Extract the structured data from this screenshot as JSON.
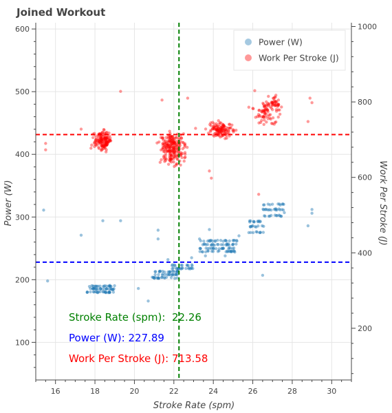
{
  "chart_data": {
    "type": "scatter",
    "title": "Joined Workout",
    "xlabel": "Stroke Rate (spm)",
    "ylabel": "Power (W)",
    "ylabel_right": "Work Per Stroke (J)",
    "xlim": [
      15.0,
      31.0
    ],
    "ylim": [
      40,
      610
    ],
    "ylim_right": [
      63,
      1010
    ],
    "x_ticks": [
      "16",
      "18",
      "20",
      "22",
      "24",
      "26",
      "28",
      "30"
    ],
    "y_ticks": [
      "100",
      "200",
      "300",
      "400",
      "500",
      "600"
    ],
    "y_ticks_right": [
      "200",
      "400",
      "600",
      "800",
      "1000"
    ],
    "grid": true,
    "legend_position": "top-right",
    "legend": [
      {
        "label": "Power (W)",
        "color": "#1f77b4"
      },
      {
        "label": "Work Per Stroke (J)",
        "color": "#ff0000"
      }
    ],
    "reference_lines": {
      "stroke_rate_spm": 22.26,
      "power_w": 227.89,
      "work_per_stroke_j": 713.58
    },
    "annotations": [
      {
        "text": "Stroke Rate (spm):  22.26",
        "color": "#008000"
      },
      {
        "text": "Power (W): 227.89",
        "color": "#0000ff"
      },
      {
        "text": "Work Per Stroke (J): 713.58",
        "color": "#ff0000"
      }
    ],
    "series": [
      {
        "name": "Power (W)",
        "axis": "left",
        "color": "#1f77b4",
        "clusters": [
          {
            "x_range": [
              17.6,
              19.0
            ],
            "y_values": [
              180,
              185,
              190
            ],
            "count": 70
          },
          {
            "x_range": [
              20.9,
              22.2
            ],
            "y_values": [
              203,
              208,
              213
            ],
            "count": 55
          },
          {
            "x_range": [
              21.9,
              23.0
            ],
            "y_values": [
              218,
              223
            ],
            "count": 30
          },
          {
            "x_range": [
              23.3,
              25.2
            ],
            "y_values": [
              245,
              250,
              256,
              262
            ],
            "count": 90
          },
          {
            "x_range": [
              25.8,
              26.6
            ],
            "y_values": [
              276,
              285,
              293
            ],
            "count": 30
          },
          {
            "x_range": [
              26.5,
              27.6
            ],
            "y_values": [
              302,
              312,
              320
            ],
            "count": 40
          }
        ],
        "points": [
          {
            "x": 15.4,
            "y": 311
          },
          {
            "x": 15.6,
            "y": 198
          },
          {
            "x": 17.3,
            "y": 271
          },
          {
            "x": 18.4,
            "y": 294
          },
          {
            "x": 19.3,
            "y": 294
          },
          {
            "x": 20.2,
            "y": 186
          },
          {
            "x": 20.7,
            "y": 166
          },
          {
            "x": 21.2,
            "y": 279
          },
          {
            "x": 21.2,
            "y": 265
          },
          {
            "x": 21.7,
            "y": 232
          },
          {
            "x": 22.9,
            "y": 235
          },
          {
            "x": 23.3,
            "y": 265
          },
          {
            "x": 23.6,
            "y": 238
          },
          {
            "x": 23.8,
            "y": 280
          },
          {
            "x": 24.6,
            "y": 238
          },
          {
            "x": 25.3,
            "y": 270
          },
          {
            "x": 26.5,
            "y": 207
          },
          {
            "x": 27.6,
            "y": 307
          },
          {
            "x": 28.8,
            "y": 286
          },
          {
            "x": 29.0,
            "y": 312
          },
          {
            "x": 29.0,
            "y": 306
          }
        ]
      },
      {
        "name": "Work Per Stroke (J)",
        "axis": "right",
        "color": "#ff0000",
        "clusters": [
          {
            "x_range": [
              17.7,
              19.1
            ],
            "y_center": 698,
            "y_spread": 22,
            "count": 140
          },
          {
            "x_range": [
              21.0,
              22.8
            ],
            "y_center": 682,
            "y_spread": 30,
            "count": 180
          },
          {
            "x_range": [
              20.9,
              22.9
            ],
            "y_center": 650,
            "y_spread": 20,
            "count": 40
          },
          {
            "x_range": [
              23.4,
              25.3
            ],
            "y_center": 727,
            "y_spread": 18,
            "count": 120
          },
          {
            "x_range": [
              25.9,
              27.6
            ],
            "y_center": 770,
            "y_spread": 25,
            "count": 70
          },
          {
            "x_range": [
              26.6,
              27.7
            ],
            "y_center": 798,
            "y_spread": 18,
            "count": 35
          }
        ],
        "points": [
          {
            "x": 15.5,
            "y": 673
          },
          {
            "x": 15.5,
            "y": 690
          },
          {
            "x": 17.3,
            "y": 728
          },
          {
            "x": 19.3,
            "y": 828
          },
          {
            "x": 21.4,
            "y": 805
          },
          {
            "x": 22.7,
            "y": 810
          },
          {
            "x": 23.1,
            "y": 730
          },
          {
            "x": 23.8,
            "y": 617
          },
          {
            "x": 23.9,
            "y": 598
          },
          {
            "x": 25.8,
            "y": 786
          },
          {
            "x": 26.0,
            "y": 783
          },
          {
            "x": 26.1,
            "y": 830
          },
          {
            "x": 26.3,
            "y": 555
          },
          {
            "x": 26.7,
            "y": 790
          },
          {
            "x": 28.8,
            "y": 748
          },
          {
            "x": 28.9,
            "y": 810
          },
          {
            "x": 29.0,
            "y": 798
          }
        ]
      }
    ]
  }
}
